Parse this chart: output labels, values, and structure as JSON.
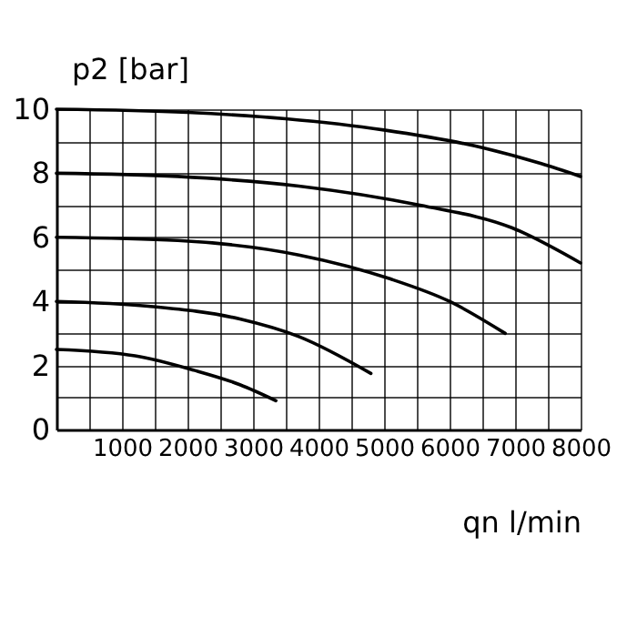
{
  "chart_data": {
    "type": "line",
    "xlabel": "qn l/min",
    "ylabel": "p2 [bar]",
    "xlim": [
      0,
      8000
    ],
    "ylim": [
      0,
      10
    ],
    "xticks": [
      {
        "value": 0,
        "label": null
      },
      {
        "value": 500,
        "label": null
      },
      1000,
      {
        "value": 1500,
        "label": null
      },
      2000,
      {
        "value": 2500,
        "label": null
      },
      3000,
      {
        "value": 3500,
        "label": null
      },
      4000,
      {
        "value": 4500,
        "label": null
      },
      5000,
      {
        "value": 5500,
        "label": null
      },
      6000,
      {
        "value": 6500,
        "label": null
      },
      7000,
      {
        "value": 7500,
        "label": null
      },
      8000
    ],
    "yticks": [
      0,
      {
        "value": 1,
        "label": null
      },
      2,
      {
        "value": 3,
        "label": null
      },
      4,
      {
        "value": 5,
        "label": null
      },
      6,
      {
        "value": 7,
        "label": null
      },
      8,
      {
        "value": 9,
        "label": null
      },
      10
    ],
    "grid": true,
    "line_style": "solid",
    "series": [
      {
        "color": "#000000",
        "x": [
          0,
          2000,
          3500,
          5000,
          6500,
          7400,
          8000
        ],
        "values": [
          10,
          9.9,
          9.7,
          9.35,
          8.8,
          8.3,
          7.9
        ]
      },
      {
        "color": "#000000",
        "x": [
          0,
          1850,
          3700,
          5550,
          6950,
          8000
        ],
        "values": [
          8,
          7.9,
          7.6,
          7.0,
          6.3,
          5.2
        ]
      },
      {
        "color": "#000000",
        "x": [
          0,
          1850,
          3700,
          5100,
          6000,
          6850
        ],
        "values": [
          6,
          5.9,
          5.45,
          4.7,
          4.0,
          3.0
        ]
      },
      {
        "color": "#000000",
        "x": [
          0,
          1400,
          2800,
          3700,
          4800
        ],
        "values": [
          4,
          3.85,
          3.45,
          2.9,
          1.75
        ]
      },
      {
        "color": "#000000",
        "x": [
          0,
          1200,
          2100,
          2800,
          3350
        ],
        "values": [
          2.5,
          2.3,
          1.85,
          1.4,
          0.9
        ]
      }
    ]
  }
}
